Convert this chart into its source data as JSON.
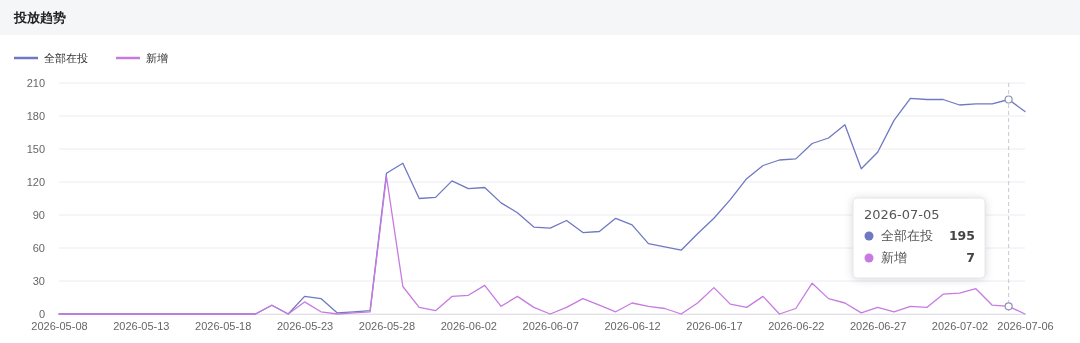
{
  "chart_data": {
    "type": "line",
    "title": "投放趋势",
    "xlim": [
      "2026-05-08",
      "2026-07-06"
    ],
    "xticks": [
      "2026-05-08",
      "2026-05-13",
      "2026-05-18",
      "2026-05-23",
      "2026-05-28",
      "2026-06-02",
      "2026-06-07",
      "2026-06-12",
      "2026-06-17",
      "2026-06-22",
      "2026-06-27",
      "2026-07-02",
      "2026-07-06"
    ],
    "ylim": [
      0,
      210
    ],
    "yticks": [
      0,
      30,
      60,
      90,
      120,
      150,
      180,
      210
    ],
    "grid": "y",
    "legend": "top left",
    "marker": "none",
    "line_style": "solid",
    "x": [
      "2026-05-08",
      "2026-05-09",
      "2026-05-10",
      "2026-05-11",
      "2026-05-12",
      "2026-05-13",
      "2026-05-14",
      "2026-05-15",
      "2026-05-16",
      "2026-05-17",
      "2026-05-18",
      "2026-05-19",
      "2026-05-20",
      "2026-05-21",
      "2026-05-22",
      "2026-05-23",
      "2026-05-24",
      "2026-05-25",
      "2026-05-26",
      "2026-05-27",
      "2026-05-28",
      "2026-05-29",
      "2026-05-30",
      "2026-05-31",
      "2026-06-01",
      "2026-06-02",
      "2026-06-03",
      "2026-06-04",
      "2026-06-05",
      "2026-06-06",
      "2026-06-07",
      "2026-06-08",
      "2026-06-09",
      "2026-06-10",
      "2026-06-11",
      "2026-06-12",
      "2026-06-13",
      "2026-06-14",
      "2026-06-15",
      "2026-06-16",
      "2026-06-17",
      "2026-06-18",
      "2026-06-19",
      "2026-06-20",
      "2026-06-21",
      "2026-06-22",
      "2026-06-23",
      "2026-06-24",
      "2026-06-25",
      "2026-06-26",
      "2026-06-27",
      "2026-06-28",
      "2026-06-29",
      "2026-06-30",
      "2026-07-01",
      "2026-07-02",
      "2026-07-03",
      "2026-07-04",
      "2026-07-05",
      "2026-07-06"
    ],
    "series": [
      {
        "name": "全部在投",
        "color": "#6f78c2",
        "values": [
          0,
          0,
          0,
          0,
          0,
          0,
          0,
          0,
          0,
          0,
          0,
          0,
          0,
          8,
          0,
          16,
          14,
          1,
          2,
          3,
          128,
          137,
          105,
          106,
          121,
          114,
          115,
          101,
          92,
          79,
          78,
          85,
          74,
          75,
          87,
          81,
          64,
          61,
          58,
          73,
          87,
          104,
          123,
          135,
          140,
          141,
          155,
          160,
          172,
          132,
          147,
          176,
          196,
          195,
          195,
          190,
          191,
          191,
          195,
          184
        ]
      },
      {
        "name": "新增",
        "color": "#c77be0",
        "values": [
          0,
          0,
          0,
          0,
          0,
          0,
          0,
          0,
          0,
          0,
          0,
          0,
          0,
          8,
          0,
          11,
          2,
          0,
          1,
          2,
          125,
          25,
          6,
          3,
          16,
          17,
          26,
          7,
          16,
          6,
          0,
          6,
          14,
          8,
          2,
          10,
          7,
          5,
          0,
          10,
          24,
          9,
          6,
          16,
          0,
          5,
          28,
          14,
          10,
          1,
          6,
          2,
          7,
          6,
          18,
          19,
          23,
          8,
          7,
          0
        ]
      }
    ],
    "ref_lines": [
      {
        "axis": "x",
        "value": "2026-07-05",
        "color": "#c8c8d4",
        "line_style": "dashed"
      }
    ],
    "annotations": [
      "2026-07-05",
      "全部在投 195",
      "新增 7"
    ]
  }
}
